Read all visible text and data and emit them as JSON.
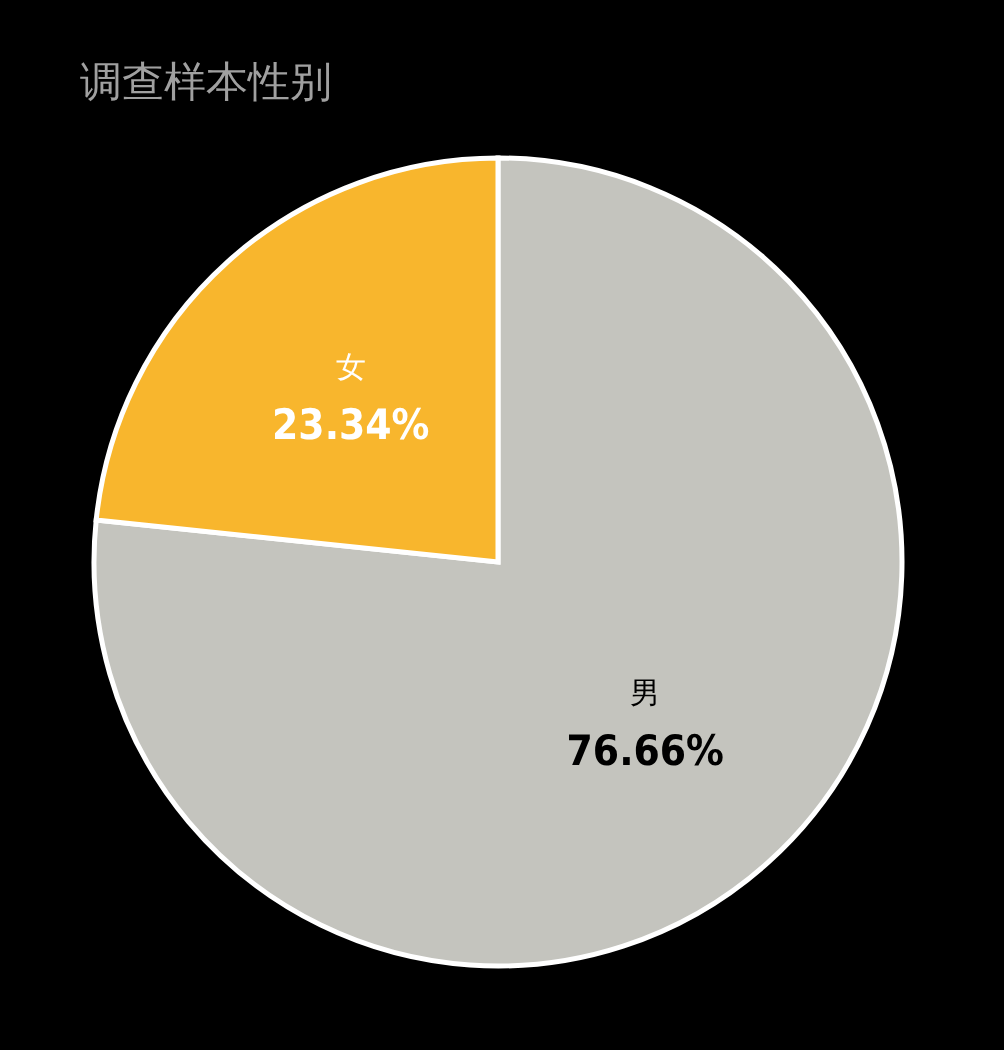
{
  "chart_data": {
    "type": "pie",
    "title": "调查样本性别",
    "categories": [
      "男",
      "女"
    ],
    "values": [
      76.66,
      23.34
    ],
    "value_labels": [
      "76.66%",
      "23.34%"
    ],
    "colors": [
      "#c4c4be",
      "#f8b62d"
    ],
    "legend": false
  }
}
